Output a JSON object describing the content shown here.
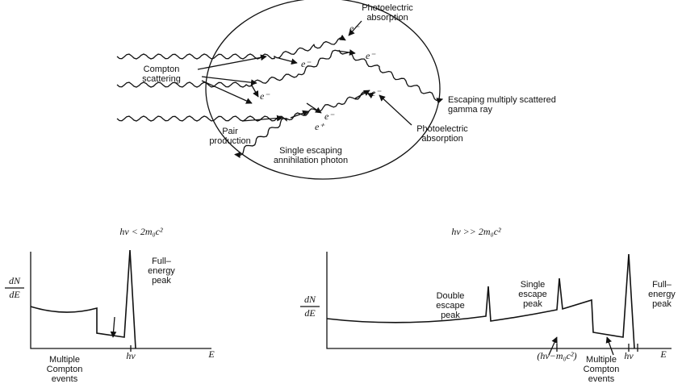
{
  "diagram": {
    "photoelectric_top": [
      "Photoelectric",
      "absorption"
    ],
    "compton": [
      "Compton",
      "scattering"
    ],
    "escaping": [
      "Escaping multiply scattered",
      "gamma ray"
    ],
    "pair": [
      "Pair",
      "production"
    ],
    "photoelectric_bottom": [
      "Photoelectric",
      "absorption"
    ],
    "annihilation": [
      "Single escaping",
      "annihilation photon"
    ],
    "electrons": [
      "e⁻",
      "e⁻",
      "e⁻",
      "e⁻",
      "e⁻",
      "e⁻"
    ],
    "positron": "e⁺"
  },
  "spectrum_low": {
    "title": "hν < 2m₀c²",
    "y_label": {
      "numerator": "dN",
      "denominator": "dE"
    },
    "x_label": "E",
    "energy_mark": "hν",
    "full_energy": [
      "Full–",
      "energy",
      "peak"
    ],
    "compton": [
      "Multiple",
      "Compton",
      "events"
    ]
  },
  "spectrum_high": {
    "title": "hν >> 2m₀c²",
    "y_label": {
      "numerator": "dN",
      "denominator": "dE"
    },
    "x_label": "E",
    "double_escape": [
      "Double",
      "escape",
      "peak"
    ],
    "single_escape": [
      "Single",
      "escape",
      "peak"
    ],
    "full_energy": [
      "Full–",
      "energy",
      "peak"
    ],
    "single_escape_mark": "(hν−m₀c²)",
    "energy_mark": "hν",
    "compton": [
      "Multiple",
      "Compton",
      "events"
    ]
  }
}
